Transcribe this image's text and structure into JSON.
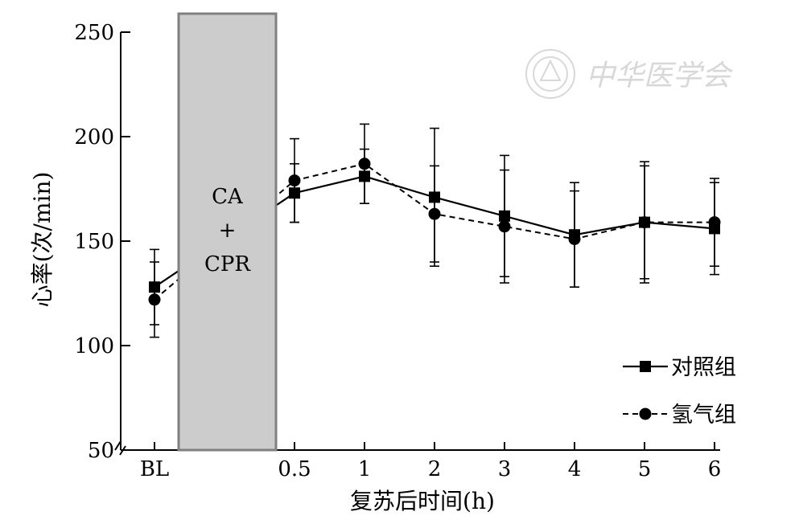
{
  "watermark": {
    "text": "中华医学会"
  },
  "chart_data": {
    "type": "line",
    "title": "",
    "xlabel": "复苏后时间(h)",
    "ylabel": "心率(次/min)",
    "ylim": [
      50,
      250
    ],
    "yticks": [
      50,
      100,
      150,
      200,
      250
    ],
    "categories": [
      "BL",
      "0.5",
      "1",
      "2",
      "3",
      "4",
      "5",
      "6"
    ],
    "intervention": {
      "label_lines": [
        "CA",
        "+",
        "CPR"
      ],
      "fill": "#cccccc",
      "stroke": "#808080"
    },
    "legend_position": "lower-right",
    "grid": false,
    "series": [
      {
        "name": "对照组",
        "marker": "square",
        "line": "solid",
        "values": [
          128,
          173,
          181,
          171,
          162,
          153,
          159,
          156
        ],
        "error": [
          18,
          14,
          13,
          33,
          29,
          25,
          29,
          22
        ]
      },
      {
        "name": "氢气组",
        "marker": "circle",
        "line": "dashed",
        "values": [
          122,
          179,
          187,
          163,
          157,
          151,
          159,
          159
        ],
        "error": [
          18,
          20,
          19,
          23,
          27,
          23,
          27,
          21
        ]
      }
    ]
  }
}
